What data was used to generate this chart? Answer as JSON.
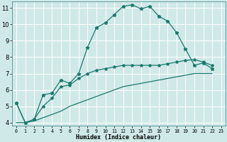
{
  "xlabel": "Humidex (Indice chaleur)",
  "bg_color": "#cfe8e8",
  "grid_color": "#ffffff",
  "line_color": "#1a7a6e",
  "xlim": [
    -0.5,
    23.5
  ],
  "ylim": [
    3.8,
    11.4
  ],
  "xticks": [
    0,
    1,
    2,
    3,
    4,
    5,
    6,
    7,
    8,
    9,
    10,
    11,
    12,
    13,
    14,
    15,
    16,
    17,
    18,
    19,
    20,
    21,
    22,
    23
  ],
  "yticks": [
    4,
    5,
    6,
    7,
    8,
    9,
    10,
    11
  ],
  "line_main": {
    "x": [
      0,
      1,
      2,
      3,
      4,
      5,
      6,
      7,
      8,
      9,
      10,
      11,
      12,
      13,
      14,
      15,
      16,
      17,
      18,
      19,
      20,
      21,
      22
    ],
    "y": [
      5.2,
      4.0,
      4.2,
      5.7,
      5.8,
      6.6,
      6.4,
      7.0,
      8.6,
      9.8,
      10.1,
      10.6,
      11.1,
      11.2,
      10.95,
      11.1,
      10.5,
      10.2,
      9.5,
      8.5,
      7.5,
      7.65,
      7.3
    ]
  },
  "line_mid": {
    "x": [
      0,
      1,
      2,
      3,
      4,
      5,
      6,
      7,
      8,
      9,
      10,
      11,
      12,
      13,
      14,
      15,
      16,
      17,
      18,
      19,
      20,
      21,
      22
    ],
    "y": [
      5.2,
      4.0,
      4.2,
      5.0,
      5.5,
      6.2,
      6.3,
      6.7,
      7.0,
      7.2,
      7.3,
      7.4,
      7.5,
      7.5,
      7.5,
      7.5,
      7.5,
      7.6,
      7.7,
      7.8,
      7.85,
      7.7,
      7.5
    ]
  },
  "line_low": {
    "x": [
      0,
      1,
      2,
      3,
      4,
      5,
      6,
      7,
      8,
      9,
      10,
      11,
      12,
      13,
      14,
      15,
      16,
      17,
      18,
      19,
      20,
      21,
      22
    ],
    "y": [
      4.0,
      4.0,
      4.1,
      4.3,
      4.5,
      4.7,
      5.0,
      5.2,
      5.4,
      5.6,
      5.8,
      6.0,
      6.2,
      6.3,
      6.4,
      6.5,
      6.6,
      6.7,
      6.8,
      6.9,
      7.0,
      7.0,
      7.0
    ]
  }
}
